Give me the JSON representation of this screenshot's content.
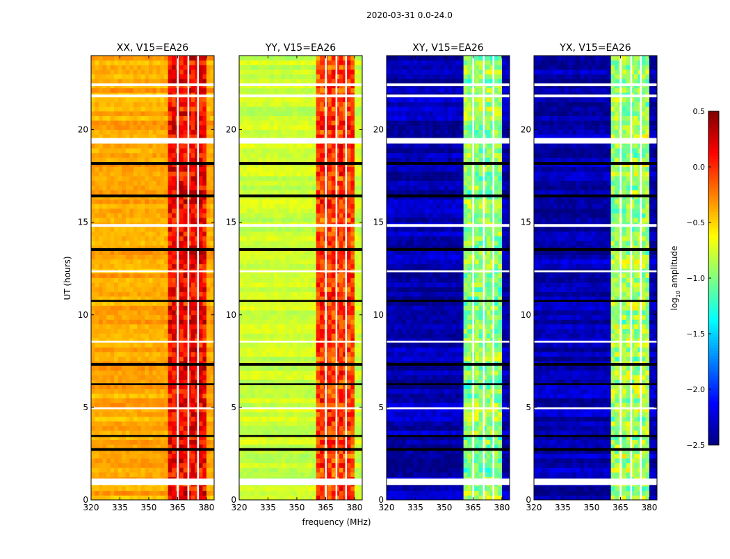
{
  "chart_data": {
    "type": "heatmap",
    "title": "2020-03-31 0.0-24.0",
    "xlabel": "frequency (MHz)",
    "ylabel": "UT (hours)",
    "xlim": [
      320,
      384
    ],
    "ylim": [
      0,
      24
    ],
    "xticks": [
      "320",
      "335",
      "350",
      "365",
      "380"
    ],
    "xtick_values": [
      320,
      335,
      350,
      365,
      380
    ],
    "yticks": [
      "0",
      "5",
      "10",
      "15",
      "20"
    ],
    "ytick_values": [
      0,
      5,
      10,
      15,
      20
    ],
    "colorbar": {
      "label_main": "log",
      "label_sub": "10",
      "label_rest": " amplitude",
      "range": [
        -2.5,
        0.5
      ],
      "ticks": [
        "0.5",
        "0.0",
        "−0.5",
        "−1.0",
        "−1.5",
        "−2.0",
        "−2.5"
      ],
      "tick_values": [
        0.5,
        0.0,
        -0.5,
        -1.0,
        -1.5,
        -2.0,
        -2.5
      ],
      "colormap": "jet"
    },
    "band_mhz": [
      361,
      380
    ],
    "band_gaps_mhz": [
      365,
      370.5,
      375.5
    ],
    "flagged_white_hours": [
      [
        0.8,
        1.15
      ],
      [
        19.25,
        19.55
      ],
      [
        22.35,
        22.5
      ],
      [
        14.75,
        14.9
      ],
      [
        21.75,
        21.9
      ],
      [
        12.3,
        12.4
      ],
      [
        8.5,
        8.6
      ],
      [
        4.9,
        5.0
      ]
    ],
    "flagged_black_hours": [
      [
        13.45,
        13.6
      ],
      [
        18.1,
        18.25
      ],
      [
        16.35,
        16.5
      ],
      [
        7.25,
        7.4
      ],
      [
        2.65,
        2.8
      ],
      [
        6.2,
        6.3
      ],
      [
        10.7,
        10.8
      ],
      [
        3.4,
        3.5
      ]
    ],
    "panels": [
      {
        "title": "XX, V15=EA26",
        "base": -0.38,
        "band": 0.02,
        "noise": 0.12
      },
      {
        "title": "YY, V15=EA26",
        "base": -0.78,
        "band": -0.15,
        "noise": 0.12
      },
      {
        "title": "XY, V15=EA26",
        "base": -2.35,
        "band": -1.05,
        "noise": 0.2
      },
      {
        "title": "YX, V15=EA26",
        "base": -2.35,
        "band": -1.0,
        "noise": 0.2
      }
    ]
  }
}
